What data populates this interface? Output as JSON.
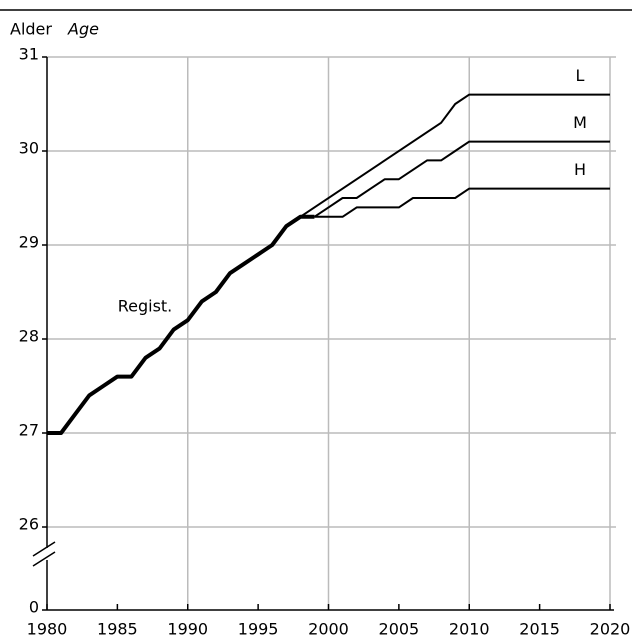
{
  "chart_data": {
    "type": "line",
    "title": "Alder",
    "subtitle": "Age",
    "xlim": [
      1980,
      2020
    ],
    "xticks": [
      1980,
      1985,
      1990,
      1995,
      2000,
      2005,
      2010,
      2015,
      2020
    ],
    "ylim": [
      26,
      31
    ],
    "yticks": [
      0,
      26,
      27,
      28,
      29,
      30,
      31
    ],
    "axis_break": true,
    "grid": true,
    "series": [
      {
        "name": "Regist.",
        "color": "#000",
        "x": [
          1980,
          1981,
          1982,
          1983,
          1984,
          1985,
          1986,
          1987,
          1988,
          1989,
          1990,
          1991,
          1992,
          1993,
          1994,
          1995,
          1996,
          1997,
          1998,
          1999
        ],
        "values": [
          27.0,
          27.0,
          27.2,
          27.4,
          27.5,
          27.6,
          27.6,
          27.8,
          27.9,
          28.1,
          28.2,
          28.4,
          28.5,
          28.7,
          28.8,
          28.9,
          29.0,
          29.2,
          29.3,
          29.3
        ]
      },
      {
        "name": "L",
        "color": "#000",
        "x": [
          1998,
          2008,
          2009,
          2010,
          2020
        ],
        "values": [
          29.3,
          30.3,
          30.5,
          30.6,
          30.6
        ]
      },
      {
        "name": "M",
        "color": "#000",
        "x": [
          1999,
          2000,
          2001,
          2002,
          2003,
          2004,
          2005,
          2006,
          2007,
          2008,
          2009,
          2010,
          2020
        ],
        "values": [
          29.3,
          29.4,
          29.5,
          29.5,
          29.6,
          29.7,
          29.7,
          29.8,
          29.9,
          29.9,
          30.0,
          30.1,
          30.1
        ]
      },
      {
        "name": "H",
        "color": "#000",
        "x": [
          1999,
          2000,
          2001,
          2002,
          2003,
          2004,
          2005,
          2006,
          2007,
          2008,
          2009,
          2010,
          2020
        ],
        "values": [
          29.3,
          29.3,
          29.3,
          29.4,
          29.4,
          29.4,
          29.4,
          29.5,
          29.5,
          29.5,
          29.5,
          29.6,
          29.6
        ]
      }
    ]
  }
}
